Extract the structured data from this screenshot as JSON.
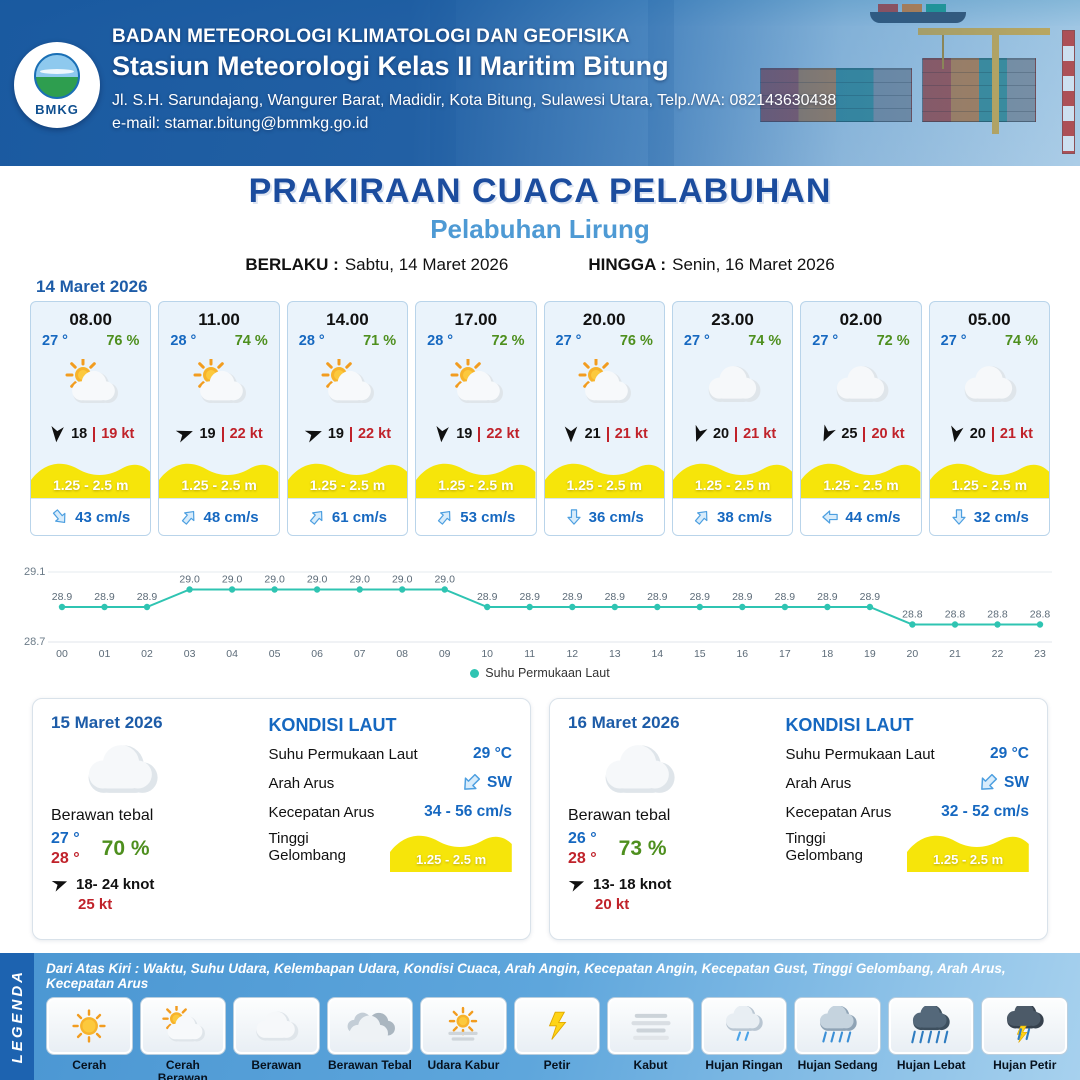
{
  "header": {
    "agency": "BADAN METEOROLOGI KLIMATOLOGI DAN GEOFISIKA",
    "station": "Stasiun Meteorologi Kelas II Maritim Bitung",
    "address": "Jl. S.H. Sarundajang, Wangurer Barat, Madidir, Kota Bitung, Sulawesi Utara, Telp./WA: 082143630438",
    "email": "e-mail: stamar.bitung@bmmkg.go.id",
    "logo_text": "BMKG"
  },
  "title": {
    "main": "PRAKIRAAN CUACA PELABUHAN",
    "sub": "Pelabuhan Lirung",
    "valid_label": "BERLAKU :",
    "valid_value": "Sabtu, 14 Maret 2026",
    "until_label": "HINGGA :",
    "until_value": "Senin, 16 Maret 2026"
  },
  "forecast_date": "14 Maret 2026",
  "cards": [
    {
      "time": "08.00",
      "temp": "27 °",
      "rh": "76 %",
      "icon": "cerah-berawan-icon",
      "wind_deg": 185,
      "wind": "18",
      "gust": "19 kt",
      "wave": "1.25 - 2.5 m",
      "current_deg": 140,
      "current": "43 cm/s"
    },
    {
      "time": "11.00",
      "temp": "28 °",
      "rh": "74 %",
      "icon": "cerah-berawan-icon",
      "wind_deg": 70,
      "wind": "19",
      "gust": "22 kt",
      "wave": "1.25 - 2.5 m",
      "current_deg": 40,
      "current": "48 cm/s"
    },
    {
      "time": "14.00",
      "temp": "28 °",
      "rh": "71 %",
      "icon": "cerah-berawan-icon",
      "wind_deg": 70,
      "wind": "19",
      "gust": "22 kt",
      "wave": "1.25 - 2.5 m",
      "current_deg": 40,
      "current": "61 cm/s"
    },
    {
      "time": "17.00",
      "temp": "28 °",
      "rh": "72 %",
      "icon": "cerah-berawan-icon",
      "wind_deg": 185,
      "wind": "19",
      "gust": "22 kt",
      "wave": "1.25 - 2.5 m",
      "current_deg": 40,
      "current": "53 cm/s"
    },
    {
      "time": "20.00",
      "temp": "27 °",
      "rh": "76 %",
      "icon": "cerah-berawan-icon",
      "wind_deg": 180,
      "wind": "21",
      "gust": "21 kt",
      "wave": "1.25 - 2.5 m",
      "current_deg": 180,
      "current": "36 cm/s"
    },
    {
      "time": "23.00",
      "temp": "27 °",
      "rh": "74 %",
      "icon": "berawan-icon",
      "wind_deg": 200,
      "wind": "20",
      "gust": "21 kt",
      "wave": "1.25 - 2.5 m",
      "current_deg": 40,
      "current": "38 cm/s"
    },
    {
      "time": "02.00",
      "temp": "27 °",
      "rh": "72 %",
      "icon": "berawan-icon",
      "wind_deg": 205,
      "wind": "25",
      "gust": "20 kt",
      "wave": "1.25 - 2.5 m",
      "current_deg": 270,
      "current": "44 cm/s"
    },
    {
      "time": "05.00",
      "temp": "27 °",
      "rh": "74 %",
      "icon": "berawan-icon",
      "wind_deg": 190,
      "wind": "20",
      "gust": "21 kt",
      "wave": "1.25 - 2.5 m",
      "current_deg": 180,
      "current": "32 cm/s"
    }
  ],
  "chart_data": {
    "type": "line",
    "series_name": "Suhu Permukaan Laut",
    "x": [
      "00",
      "01",
      "02",
      "03",
      "04",
      "05",
      "06",
      "07",
      "08",
      "09",
      "10",
      "11",
      "12",
      "13",
      "14",
      "15",
      "16",
      "17",
      "18",
      "19",
      "20",
      "21",
      "22",
      "23"
    ],
    "values": [
      28.9,
      28.9,
      28.9,
      29.0,
      29.0,
      29.0,
      29.0,
      29.0,
      29.0,
      29.0,
      28.9,
      28.9,
      28.9,
      28.9,
      28.9,
      28.9,
      28.9,
      28.9,
      28.9,
      28.9,
      28.8,
      28.8,
      28.8,
      28.8
    ],
    "ylim": [
      28.7,
      29.1
    ],
    "line_color": "#2fc4b2",
    "grid": false,
    "legend_position": "bottom"
  },
  "sea_labels": {
    "title": "KONDISI LAUT",
    "sst": "Suhu Permukaan Laut",
    "dir": "Arah Arus",
    "speed": "Kecepatan Arus",
    "wave": "Tinggi Gelombang"
  },
  "days": [
    {
      "date": "15 Maret 2026",
      "icon": "berawan-icon",
      "condition": "Berawan tebal",
      "temp_min": "27 °",
      "temp_max": "28 °",
      "rh": "70 %",
      "wind_deg": 70,
      "wind_range": "18- 24 knot",
      "gust": "25 kt",
      "sst": "29 °C",
      "current_deg": 225,
      "current_dir": "SW",
      "current_speed": "34 - 56 cm/s",
      "wave": "1.25 - 2.5 m"
    },
    {
      "date": "16 Maret 2026",
      "icon": "berawan-icon",
      "condition": "Berawan tebal",
      "temp_min": "26 °",
      "temp_max": "28 °",
      "rh": "73 %",
      "wind_deg": 70,
      "wind_range": "13- 18 knot",
      "gust": "20 kt",
      "sst": "29 °C",
      "current_deg": 225,
      "current_dir": "SW",
      "current_speed": "32 - 52 cm/s",
      "wave": "1.25 - 2.5 m"
    }
  ],
  "legend": {
    "title": "LEGENDA",
    "caption": "Dari Atas Kiri : Waktu, Suhu Udara, Kelembapan Udara, Kondisi Cuaca, Arah Angin, Kecepatan Angin, Kecepatan Gust, Tinggi Gelombang, Arah Arus, Kecepatan Arus",
    "items": [
      {
        "label": "Cerah",
        "icon": "cerah-icon"
      },
      {
        "label": "Cerah Berawan",
        "icon": "cerah-berawan-icon"
      },
      {
        "label": "Berawan",
        "icon": "berawan-icon"
      },
      {
        "label": "Berawan Tebal",
        "icon": "berawan-tebal-icon"
      },
      {
        "label": "Udara Kabur",
        "icon": "udara-kabur-icon"
      },
      {
        "label": "Petir",
        "icon": "petir-icon"
      },
      {
        "label": "Kabut",
        "icon": "kabut-icon"
      },
      {
        "label": "Hujan Ringan",
        "icon": "hujan-ringan-icon"
      },
      {
        "label": "Hujan Sedang",
        "icon": "hujan-sedang-icon"
      },
      {
        "label": "Hujan Lebat",
        "icon": "hujan-lebat-icon"
      },
      {
        "label": "Hujan Petir",
        "icon": "hujan-petir-icon"
      }
    ]
  },
  "colors": {
    "header_blue": "#1a5fae",
    "title_blue": "#1b4c9e",
    "subtitle_blue": "#4e9ad4",
    "temp_blue": "#1668c0",
    "humidity_green": "#4e8f1e",
    "red": "#c0222a",
    "wave_yellow": "#f6e50a",
    "sst_line_teal": "#2fc4b2"
  }
}
